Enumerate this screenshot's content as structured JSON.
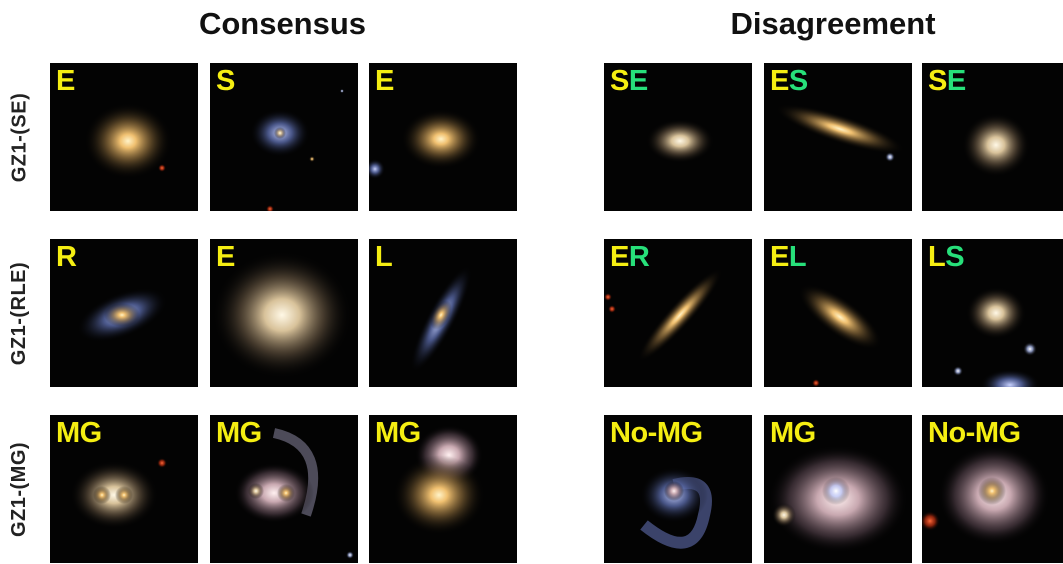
{
  "headings": {
    "consensus": "Consensus",
    "disagreement": "Disagreement"
  },
  "rows": [
    {
      "label": "GZ1-(SE)"
    },
    {
      "label": "GZ1-(RLE)"
    },
    {
      "label": "GZ1-(MG)"
    }
  ],
  "colors": {
    "label_primary": "#f5ee12",
    "label_secondary": "#27e07a"
  },
  "tiles": {
    "r0": [
      {
        "a": "E",
        "b": ""
      },
      {
        "a": "S",
        "b": ""
      },
      {
        "a": "E",
        "b": ""
      },
      {
        "a": "S",
        "b": "E"
      },
      {
        "a": "E",
        "b": "S"
      },
      {
        "a": "S",
        "b": "E"
      }
    ],
    "r1": [
      {
        "a": "R",
        "b": ""
      },
      {
        "a": "E",
        "b": ""
      },
      {
        "a": "L",
        "b": ""
      },
      {
        "a": "E",
        "b": "R"
      },
      {
        "a": "E",
        "b": "L"
      },
      {
        "a": "L",
        "b": "S"
      }
    ],
    "r2": [
      {
        "a": "MG",
        "b": ""
      },
      {
        "a": "MG",
        "b": ""
      },
      {
        "a": "MG",
        "b": ""
      },
      {
        "a": "No-MG",
        "b": ""
      },
      {
        "a": "MG",
        "b": ""
      },
      {
        "a": "No-MG",
        "b": ""
      }
    ]
  }
}
